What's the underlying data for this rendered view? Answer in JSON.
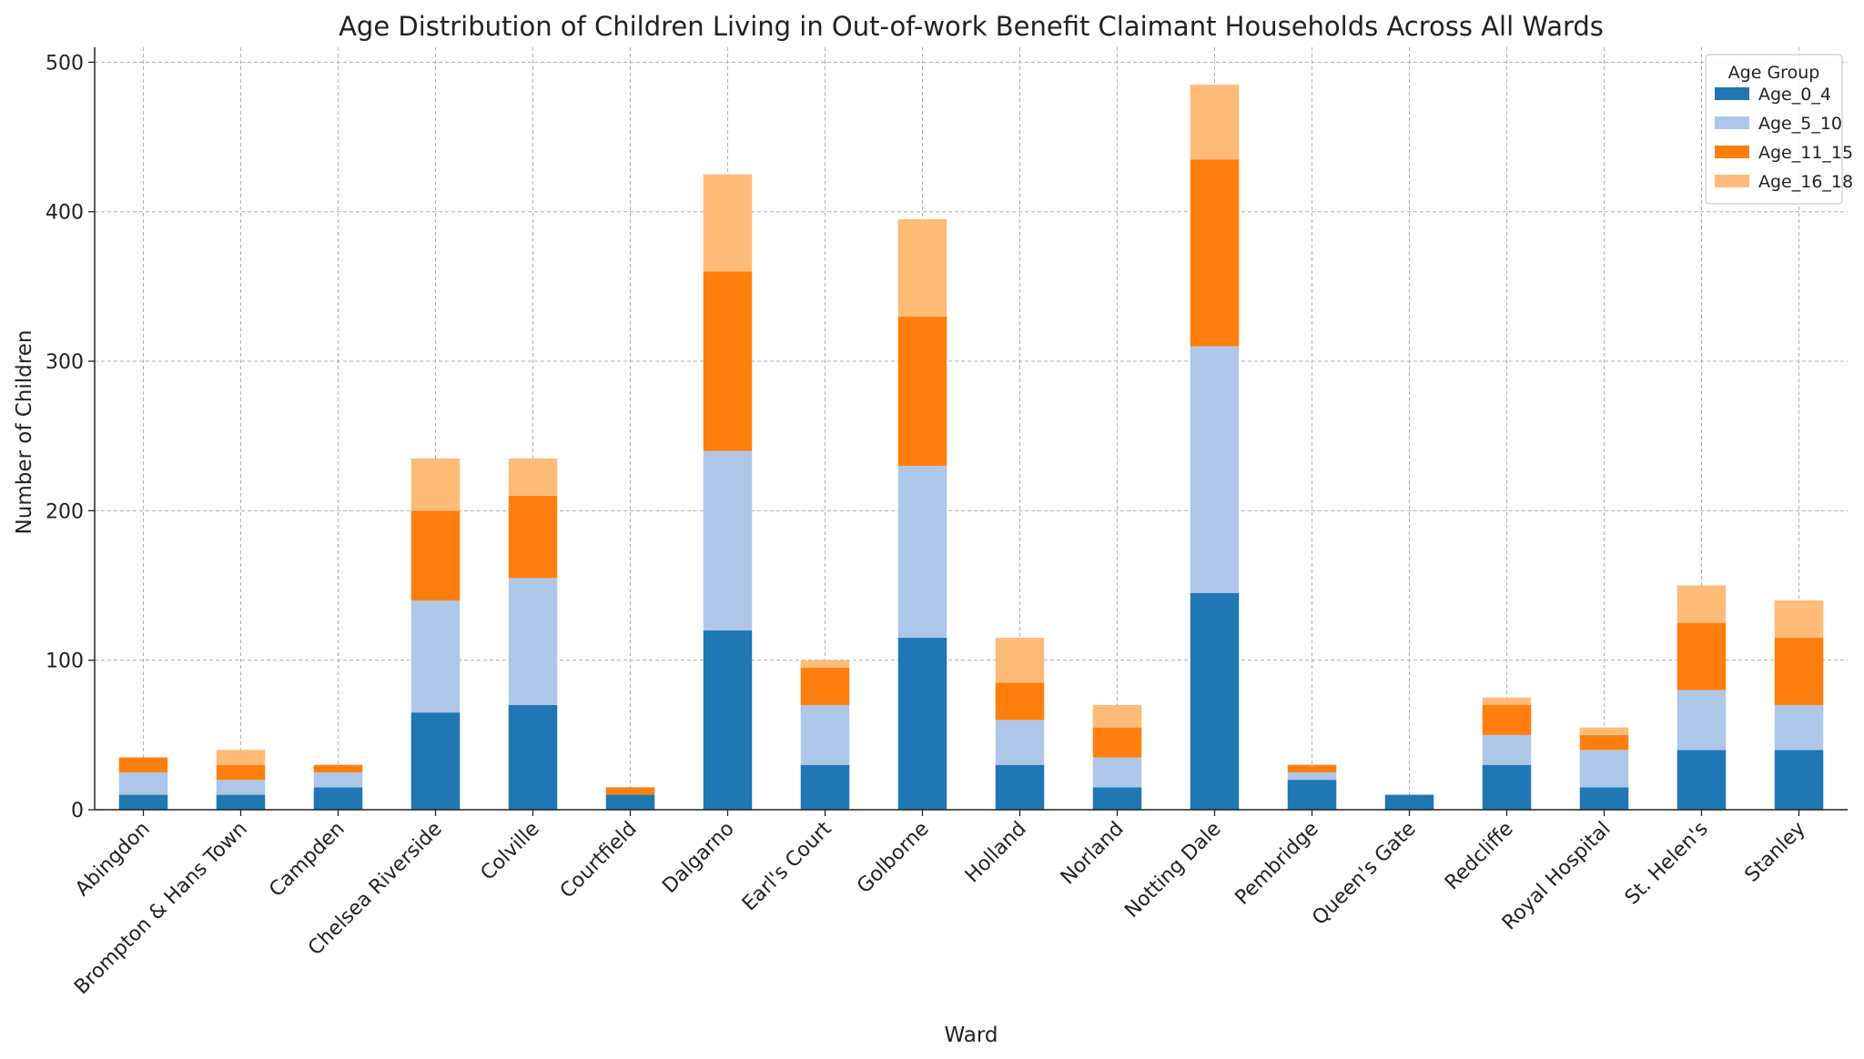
{
  "chart_data": {
    "type": "bar",
    "stacked": true,
    "title": "Age Distribution of Children Living in Out-of-work Benefit Claimant Households Across All Wards",
    "xlabel": "Ward",
    "ylabel": "Number of Children",
    "ylim": [
      0,
      510
    ],
    "yticks": [
      0,
      100,
      200,
      300,
      400,
      500
    ],
    "grid": true,
    "legend": {
      "title": "Age Group",
      "position": "top-right"
    },
    "categories": [
      "Abingdon",
      "Brompton & Hans Town",
      "Campden",
      "Chelsea Riverside",
      "Colville",
      "Courtfield",
      "Dalgarno",
      "Earl's Court",
      "Golborne",
      "Holland",
      "Norland",
      "Notting Dale",
      "Pembridge",
      "Queen's Gate",
      "Redcliffe",
      "Royal Hospital",
      "St. Helen's",
      "Stanley"
    ],
    "series": [
      {
        "name": "Age_0_4",
        "color": "#1f77b4",
        "values": [
          10,
          10,
          15,
          65,
          70,
          10,
          120,
          30,
          115,
          30,
          15,
          145,
          20,
          10,
          30,
          15,
          40,
          40
        ]
      },
      {
        "name": "Age_5_10",
        "color": "#aec7e8",
        "values": [
          15,
          10,
          10,
          75,
          85,
          0,
          120,
          40,
          115,
          30,
          20,
          165,
          5,
          0,
          20,
          25,
          40,
          30
        ]
      },
      {
        "name": "Age_11_15",
        "color": "#ff7f0e",
        "values": [
          10,
          10,
          5,
          60,
          55,
          5,
          120,
          25,
          100,
          25,
          20,
          125,
          5,
          0,
          20,
          10,
          45,
          45
        ]
      },
      {
        "name": "Age_16_18",
        "color": "#ffbb78",
        "values": [
          0,
          10,
          0,
          35,
          25,
          0,
          65,
          5,
          65,
          30,
          15,
          50,
          0,
          0,
          5,
          5,
          25,
          25
        ]
      }
    ]
  }
}
